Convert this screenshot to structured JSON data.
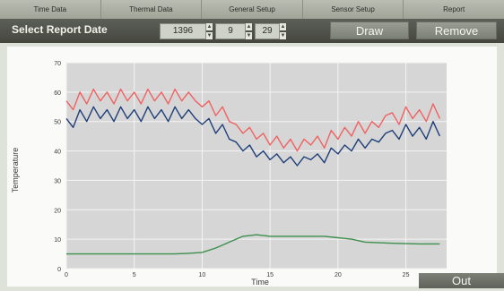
{
  "tabs": [
    "Time Data",
    "Thermal Data",
    "General Setup",
    "Sensor Setup",
    "Report"
  ],
  "toolbar": {
    "title": "Select Report Date",
    "year": "1396",
    "month": "9",
    "day": "29",
    "draw_label": "Draw",
    "remove_label": "Remove"
  },
  "icons": {
    "spinner_up": "spin-up-icon",
    "spinner_down": "spin-down-icon"
  },
  "out_label": "Out",
  "chart_data": {
    "type": "line",
    "ylabel": "Temperature",
    "xlabel": "Time",
    "xlim": [
      0,
      28
    ],
    "ylim": [
      0,
      70
    ],
    "xticks": [
      0,
      5,
      10,
      15,
      20,
      25
    ],
    "yticks": [
      0,
      10,
      20,
      30,
      40,
      50,
      60,
      70
    ],
    "series": [
      {
        "color": "#f06262",
        "x": [
          0,
          0.5,
          1,
          1.5,
          2,
          2.5,
          3,
          3.5,
          4,
          4.5,
          5,
          5.5,
          6,
          6.5,
          7,
          7.5,
          8,
          8.5,
          9,
          9.5,
          10,
          10.5,
          11,
          11.5,
          12,
          12.5,
          13,
          13.5,
          14,
          14.5,
          15,
          15.5,
          16,
          16.5,
          17,
          17.5,
          18,
          18.5,
          19,
          19.5,
          20,
          20.5,
          21,
          21.5,
          22,
          22.5,
          23,
          23.5,
          24,
          24.5,
          25,
          25.5,
          26,
          26.5,
          27,
          27.5
        ],
        "values": [
          57,
          54,
          60,
          56,
          61,
          57,
          60,
          56,
          61,
          57,
          60,
          56,
          61,
          57,
          60,
          56,
          61,
          57,
          60,
          57,
          55,
          57,
          52,
          55,
          50,
          49,
          46,
          48,
          44,
          46,
          42,
          45,
          41,
          44,
          40,
          44,
          42,
          45,
          41,
          47,
          44,
          48,
          45,
          50,
          46,
          50,
          48,
          52,
          53,
          49,
          55,
          51,
          54,
          50,
          56,
          51
        ]
      },
      {
        "color": "#1f3f7a",
        "x": [
          0,
          0.5,
          1,
          1.5,
          2,
          2.5,
          3,
          3.5,
          4,
          4.5,
          5,
          5.5,
          6,
          6.5,
          7,
          7.5,
          8,
          8.5,
          9,
          9.5,
          10,
          10.5,
          11,
          11.5,
          12,
          12.5,
          13,
          13.5,
          14,
          14.5,
          15,
          15.5,
          16,
          16.5,
          17,
          17.5,
          18,
          18.5,
          19,
          19.5,
          20,
          20.5,
          21,
          21.5,
          22,
          22.5,
          23,
          23.5,
          24,
          24.5,
          25,
          25.5,
          26,
          26.5,
          27,
          27.5
        ],
        "values": [
          51,
          48,
          54,
          50,
          55,
          51,
          54,
          50,
          55,
          51,
          54,
          50,
          55,
          51,
          54,
          50,
          55,
          51,
          54,
          51,
          49,
          51,
          46,
          49,
          44,
          43,
          40,
          42,
          38,
          40,
          37,
          39,
          36,
          38,
          35,
          38,
          37,
          39,
          36,
          41,
          39,
          42,
          40,
          44,
          41,
          44,
          43,
          46,
          47,
          44,
          49,
          45,
          48,
          44,
          50,
          45
        ]
      },
      {
        "color": "#3c8f4c",
        "x": [
          0,
          2,
          4,
          6,
          8,
          9,
          10,
          11,
          12,
          13,
          14,
          15,
          16,
          17,
          18,
          19,
          20,
          21,
          22,
          23,
          24,
          25,
          26,
          27,
          27.5
        ],
        "values": [
          5,
          5,
          5,
          5,
          5,
          5.2,
          5.5,
          7,
          9,
          11,
          11.5,
          11,
          11,
          11,
          11,
          11,
          10.5,
          10,
          9,
          8.8,
          8.6,
          8.5,
          8.4,
          8.4,
          8.4
        ]
      }
    ]
  }
}
